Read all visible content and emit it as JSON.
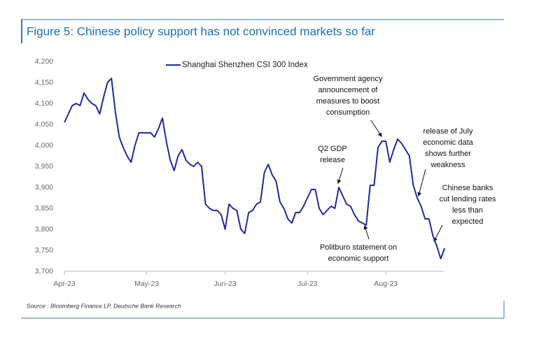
{
  "chart_data": {
    "type": "line",
    "title": "Figure 5: Chinese policy support has not convinced markets so far",
    "source": "Source : Bloomberg Finance LP, Deutsche Bank Research",
    "categories": [
      "Apr-23",
      null,
      null,
      null,
      null,
      null,
      null,
      null,
      null,
      null,
      null,
      null,
      null,
      null,
      null,
      null,
      null,
      null,
      null,
      null,
      null,
      "May-23",
      null,
      null,
      null,
      null,
      null,
      null,
      null,
      null,
      null,
      null,
      null,
      null,
      null,
      null,
      null,
      null,
      null,
      null,
      null,
      "Jun-23",
      null,
      null,
      null,
      null,
      null,
      null,
      null,
      null,
      null,
      null,
      null,
      null,
      null,
      null,
      null,
      null,
      null,
      null,
      null,
      null,
      "Jul-23",
      null,
      null,
      null,
      null,
      null,
      null,
      null,
      null,
      null,
      null,
      null,
      null,
      null,
      null,
      null,
      null,
      null,
      null,
      null,
      "Aug-23",
      null,
      null,
      null,
      null,
      null,
      null,
      null,
      null,
      null,
      null,
      null,
      null,
      null,
      null,
      null
    ],
    "series": [
      {
        "name": "Shanghai Shenzhen CSI 300 Index",
        "color": "#1f2a9c",
        "values": [
          4055,
          4075,
          4095,
          4100,
          4095,
          4125,
          4110,
          4100,
          4095,
          4075,
          4115,
          4150,
          4160,
          4080,
          4020,
          3995,
          3975,
          3960,
          4000,
          4030,
          4030,
          4030,
          4030,
          4020,
          4040,
          4065,
          4010,
          3965,
          3940,
          3975,
          3990,
          3965,
          3955,
          3950,
          3960,
          3950,
          3860,
          3850,
          3845,
          3845,
          3835,
          3800,
          3860,
          3850,
          3845,
          3800,
          3790,
          3840,
          3845,
          3860,
          3865,
          3935,
          3955,
          3930,
          3915,
          3865,
          3850,
          3825,
          3815,
          3840,
          3840,
          3855,
          3875,
          3895,
          3895,
          3850,
          3835,
          3845,
          3855,
          3850,
          3900,
          3880,
          3860,
          3855,
          3835,
          3820,
          3815,
          3810,
          3905,
          3905,
          3995,
          4010,
          4010,
          3960,
          3990,
          4015,
          4005,
          3990,
          3975,
          3905,
          3875,
          3855,
          3825,
          3825,
          3785,
          3760,
          3730,
          3755
        ]
      }
    ],
    "ylim": [
      3700,
      4200
    ],
    "yticks": [
      {
        "value": 3700,
        "label": "3,700"
      },
      {
        "value": 3750,
        "label": "3,750"
      },
      {
        "value": 3800,
        "label": "3,800"
      },
      {
        "value": 3850,
        "label": "3,850"
      },
      {
        "value": 3900,
        "label": "3,900"
      },
      {
        "value": 3950,
        "label": "3,950"
      },
      {
        "value": 4000,
        "label": "4,000"
      },
      {
        "value": 4050,
        "label": "4,050"
      },
      {
        "value": 4100,
        "label": "4,100"
      },
      {
        "value": 4150,
        "label": "4,150"
      },
      {
        "value": 4200,
        "label": "4,200"
      }
    ],
    "grid": false,
    "annotations": [
      {
        "lines": [
          "Government agency",
          "announcement of",
          "measures to boost",
          "consumption"
        ]
      },
      {
        "lines": [
          "Q2 GDP",
          "release"
        ]
      },
      {
        "lines": [
          "release of July",
          "economic data",
          "shows further",
          "weakness"
        ]
      },
      {
        "lines": [
          "Chinese banks",
          "cut lending rates",
          "less than",
          "expected"
        ]
      },
      {
        "lines": [
          "Politburo statement on",
          "economic support"
        ]
      }
    ]
  }
}
